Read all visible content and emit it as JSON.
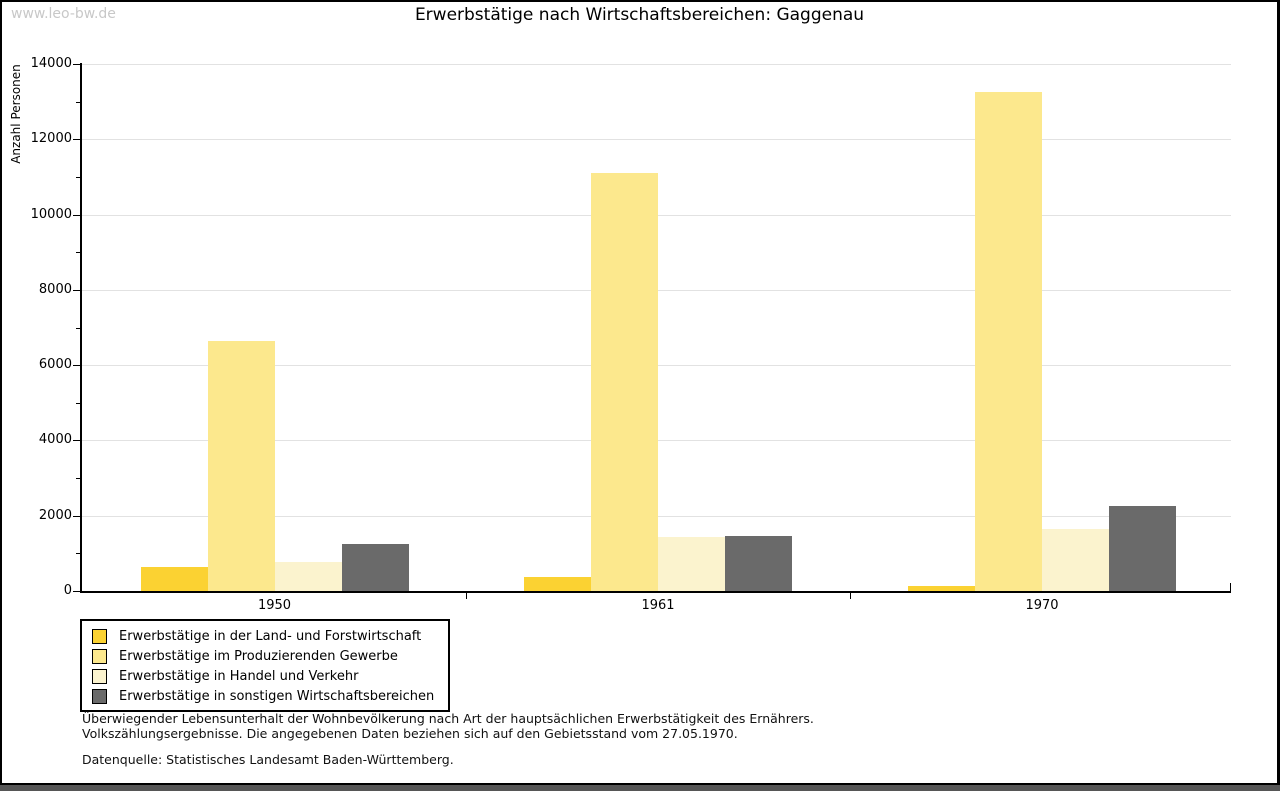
{
  "watermark": "www.leo-bw.de",
  "title": "Erwerbstätige nach Wirtschaftsbereichen: Gaggenau",
  "chart_data": {
    "type": "bar",
    "title": "Erwerbstätige nach Wirtschaftsbereichen: Gaggenau",
    "xlabel": "",
    "ylabel": "Anzahl Personen",
    "ylim": [
      0,
      14000
    ],
    "y_tick_step": 2000,
    "y_minor_tick_step": 1000,
    "grid": true,
    "legend_position": "bottom-left",
    "categories": [
      "1950",
      "1961",
      "1970"
    ],
    "series": [
      {
        "name": "Erwerbstätige in der Land- und Forstwirtschaft",
        "color": "#FBD232",
        "values": [
          650,
          380,
          120
        ]
      },
      {
        "name": "Erwerbstätige im Produzierenden Gewerbe",
        "color": "#FCE88D",
        "values": [
          6650,
          11100,
          13250
        ]
      },
      {
        "name": "Erwerbstätige in Handel und Verkehr",
        "color": "#FBF3CE",
        "values": [
          780,
          1430,
          1650
        ]
      },
      {
        "name": "Erwerbstätige in sonstigen Wirtschaftsbereichen",
        "color": "#6A6A6A",
        "values": [
          1260,
          1460,
          2250
        ]
      }
    ]
  },
  "footnotes": {
    "line1": "Überwiegender Lebensunterhalt der Wohnbevölkerung nach Art der hauptsächlichen Erwerbstätigkeit des Ernährers.",
    "line2": "Volkszählungsergebnisse. Die angegebenen Daten beziehen sich auf den Gebietsstand vom 27.05.1970.",
    "source": "Datenquelle: Statistisches Landesamt Baden-Württemberg."
  },
  "colors": {
    "gridline": "#E2E2E2",
    "axis": "#000000",
    "watermark": "#C8C8C8",
    "background": "#FFFFFF"
  }
}
